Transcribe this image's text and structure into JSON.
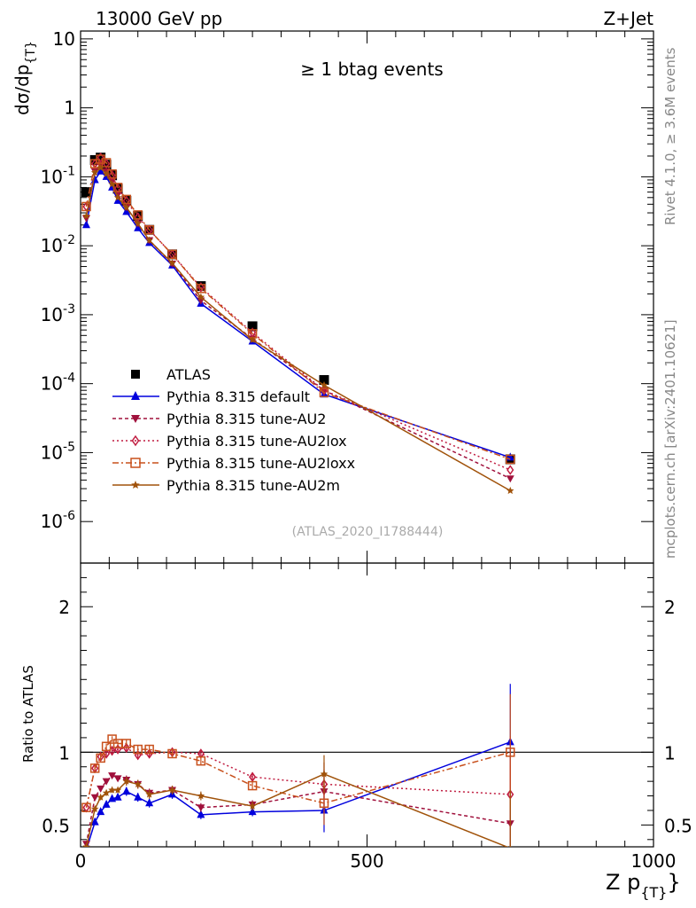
{
  "header": {
    "energy": "13000 GeV pp",
    "process": "Z+Jet",
    "rivet_label": "Rivet 4.1.0, ≥ 3.6M events",
    "site_label": "mcplots.cern.ch [arXiv:2401.10621]"
  },
  "chart_data": [
    {
      "type": "scatter",
      "panel": "main",
      "title": "≥ 1 btag events",
      "ylabel": "dσ/dp_{T}",
      "analysis_tag": "(ATLAS_2020_I1788444)",
      "yscale": "log",
      "xlim": [
        0,
        1000
      ],
      "ylim": [
        2.5e-07,
        13
      ],
      "ytick_labels": [
        "10^{-6}",
        "10^{-5}",
        "10^{-4}",
        "10^{-3}",
        "10^{-2}",
        "10^{-1}",
        "1",
        "10"
      ],
      "x": [
        10,
        25,
        35,
        45,
        55,
        65,
        80,
        100,
        120,
        160,
        210,
        300,
        425,
        750
      ],
      "series": [
        {
          "name": "ATLAS",
          "marker": "square",
          "color": "#000000",
          "dash": "none",
          "values": [
            0.06,
            0.175,
            0.19,
            0.15,
            0.105,
            0.067,
            0.045,
            0.027,
            0.017,
            0.0075,
            0.0026,
            0.00068,
            0.000113,
            8e-06
          ]
        },
        {
          "name": "Pythia 8.315 default",
          "marker": "triangle-up",
          "color": "#0000dd",
          "dash": "none",
          "values": [
            0.02,
            0.09,
            0.12,
            0.1,
            0.07,
            0.045,
            0.031,
            0.018,
            0.011,
            0.0052,
            0.00145,
            0.00041,
            7e-05,
            8.5e-06
          ]
        },
        {
          "name": "Pythia 8.315 tune-AU2",
          "marker": "triangle-down",
          "color": "#a0103c",
          "dash": "4,3",
          "values": [
            0.025,
            0.12,
            0.15,
            0.12,
            0.085,
            0.055,
            0.036,
            0.021,
            0.012,
            0.0055,
            0.0016,
            0.00045,
            8e-05,
            4.2e-06
          ]
        },
        {
          "name": "Pythia 8.315 tune-AU2lox",
          "marker": "diamond",
          "color": "#c01c40",
          "dash": "2,3",
          "values": [
            0.037,
            0.155,
            0.19,
            0.155,
            0.105,
            0.068,
            0.045,
            0.026,
            0.017,
            0.0075,
            0.0025,
            0.00055,
            8e-05,
            5.6e-06
          ]
        },
        {
          "name": "Pythia 8.315 tune-AU2loxx",
          "marker": "square-open",
          "color": "#c8501c",
          "dash": "7,3,2,3",
          "values": [
            0.037,
            0.155,
            0.18,
            0.16,
            0.11,
            0.07,
            0.047,
            0.028,
            0.017,
            0.0075,
            0.0024,
            0.00053,
            7.4e-05,
            8e-06
          ]
        },
        {
          "name": "Pythia 8.315 tune-AU2m",
          "marker": "star",
          "color": "#a0520a",
          "dash": "none",
          "values": [
            0.027,
            0.115,
            0.135,
            0.11,
            0.078,
            0.05,
            0.036,
            0.021,
            0.012,
            0.0056,
            0.0018,
            0.00043,
            9.5e-05,
            2.8e-06
          ]
        }
      ]
    },
    {
      "type": "scatter",
      "panel": "ratio",
      "ylabel": "Ratio to ATLAS",
      "xlabel": "Z p_{T}",
      "xlim": [
        0,
        1000
      ],
      "ylim": [
        0.35,
        2.3
      ],
      "xtick_labels": [
        "0",
        "500",
        "1000"
      ],
      "ytick_labels": [
        "0.5",
        "1",
        "2"
      ],
      "x": [
        10,
        25,
        35,
        45,
        55,
        65,
        80,
        100,
        120,
        160,
        210,
        300,
        425,
        750
      ],
      "series": [
        {
          "name": "Pythia 8.315 default",
          "values": [
            0.33,
            0.52,
            0.59,
            0.64,
            0.68,
            0.69,
            0.73,
            0.69,
            0.65,
            0.71,
            0.57,
            0.59,
            0.6,
            1.07
          ],
          "err": [
            0,
            0.02,
            0.02,
            0.02,
            0.02,
            0.02,
            0.03,
            0.03,
            0.03,
            0.03,
            0.03,
            0.03,
            0.15,
            0.4
          ]
        },
        {
          "name": "Pythia 8.315 tune-AU2",
          "values": [
            0.37,
            0.69,
            0.75,
            0.8,
            0.84,
            0.82,
            0.81,
            0.78,
            0.72,
            0.74,
            0.62,
            0.64,
            0.73,
            0.51
          ],
          "err": [
            0,
            0.02,
            0.02,
            0.02,
            0.02,
            0.02,
            0.03,
            0.03,
            0.03,
            0.03,
            0.03,
            0.03,
            0.15,
            0.4
          ]
        },
        {
          "name": "Pythia 8.315 tune-AU2lox",
          "values": [
            0.62,
            0.89,
            0.97,
            0.99,
            1.01,
            1.02,
            1.03,
            0.98,
            0.99,
            1.0,
            0.99,
            0.83,
            0.78,
            0.71
          ],
          "err": [
            0,
            0.02,
            0.02,
            0.02,
            0.02,
            0.02,
            0.03,
            0.03,
            0.03,
            0.03,
            0.03,
            0.03,
            0.15,
            0.4
          ]
        },
        {
          "name": "Pythia 8.315 tune-AU2loxx",
          "values": [
            0.62,
            0.89,
            0.96,
            1.04,
            1.09,
            1.06,
            1.06,
            1.02,
            1.02,
            0.99,
            0.94,
            0.77,
            0.65,
            1.0
          ],
          "err": [
            0,
            0.02,
            0.02,
            0.02,
            0.02,
            0.02,
            0.03,
            0.03,
            0.03,
            0.03,
            0.03,
            0.03,
            0.15,
            0.4
          ]
        },
        {
          "name": "Pythia 8.315 tune-AU2m",
          "values": [
            0.35,
            0.61,
            0.69,
            0.72,
            0.74,
            0.74,
            0.8,
            0.78,
            0.71,
            0.74,
            0.7,
            0.63,
            0.85,
            0.34
          ],
          "err": [
            0,
            0.02,
            0.02,
            0.02,
            0.02,
            0.02,
            0.03,
            0.03,
            0.03,
            0.03,
            0.03,
            0.03,
            0.13,
            0.4
          ]
        }
      ]
    }
  ]
}
